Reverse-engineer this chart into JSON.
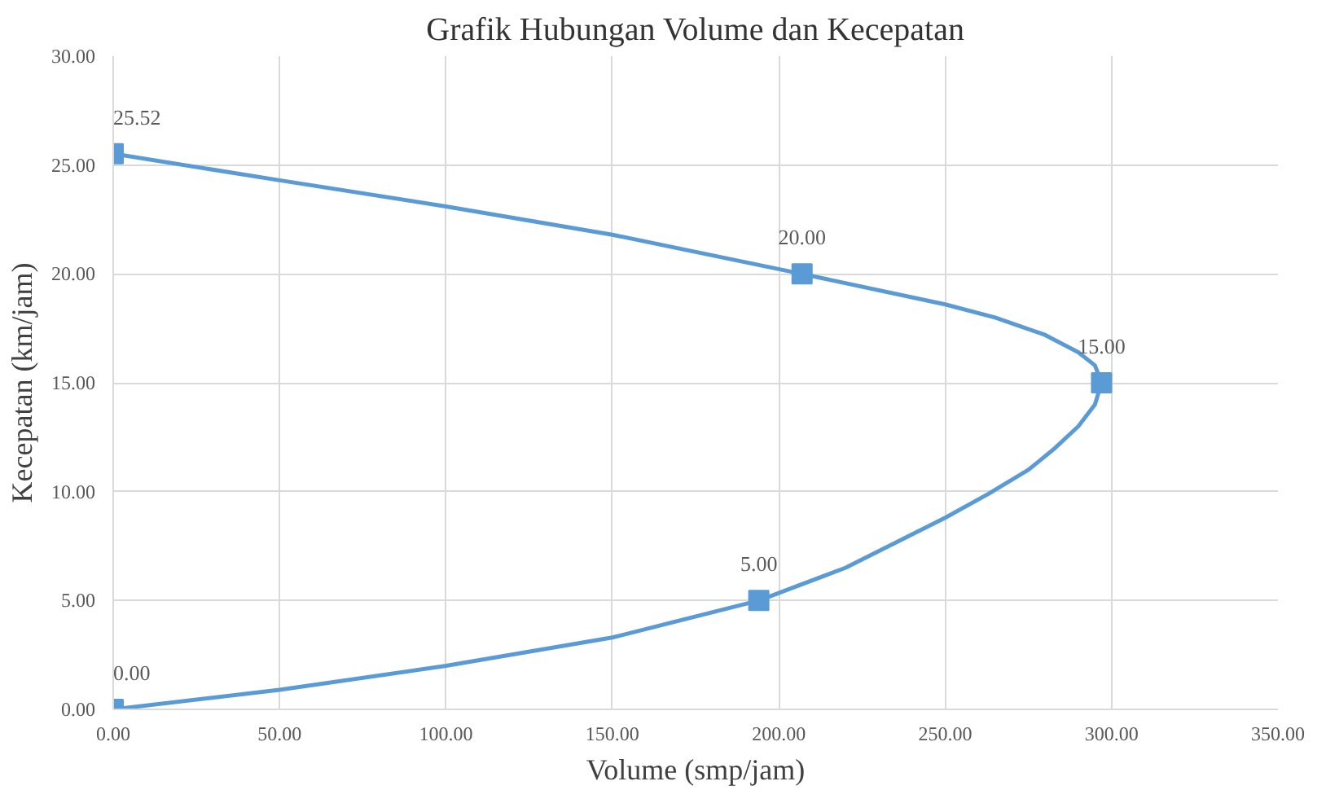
{
  "chart_data": {
    "type": "line",
    "title": "Grafik Hubungan Volume dan Kecepatan",
    "xlabel": "Volume (smp/jam)",
    "ylabel": "Kecepatan (km/jam)",
    "x": [
      0,
      207,
      297,
      194,
      0
    ],
    "series": [
      {
        "marker": "none",
        "color": "#5b9bd5",
        "x": [
          0,
          50,
          100,
          150,
          207,
          250,
          265,
          280,
          290,
          295,
          297,
          295,
          290,
          283,
          275,
          263,
          250,
          220,
          194,
          150,
          100,
          50,
          0
        ],
        "values": [
          25.52,
          24.3,
          23.1,
          21.8,
          20.0,
          18.6,
          18.0,
          17.2,
          16.4,
          15.8,
          15.0,
          14.0,
          13.0,
          12.0,
          11.0,
          9.9,
          8.8,
          6.5,
          5.0,
          3.3,
          2.0,
          0.9,
          0.0
        ]
      },
      {
        "type": "scatter",
        "color": "#5b9bd5",
        "values": [
          25.52,
          20.0,
          15.0,
          5.0,
          0.0
        ],
        "value_labels": [
          "25.52",
          "20.00",
          "15.00",
          "5.00",
          "0.00"
        ]
      }
    ],
    "xlim": [
      0,
      350
    ],
    "ylim": [
      0,
      30
    ],
    "xticks": [
      {
        "value": 0,
        "label": "0.00"
      },
      {
        "value": 50,
        "label": "50.00"
      },
      {
        "value": 100,
        "label": "100.00"
      },
      {
        "value": 150,
        "label": "150.00"
      },
      {
        "value": 200,
        "label": "200.00"
      },
      {
        "value": 250,
        "label": "250.00"
      },
      {
        "value": 300,
        "label": "300.00"
      },
      {
        "value": 350,
        "label": "350.00"
      }
    ],
    "yticks": [
      {
        "value": 0,
        "label": "0.00"
      },
      {
        "value": 5,
        "label": "5.00"
      },
      {
        "value": 10,
        "label": "10.00"
      },
      {
        "value": 15,
        "label": "15.00"
      },
      {
        "value": 20,
        "label": "20.00"
      },
      {
        "value": 25,
        "label": "25.00"
      },
      {
        "value": 30,
        "label": "30.00"
      }
    ],
    "grid": true,
    "marker": "square",
    "line_style": "solid"
  }
}
